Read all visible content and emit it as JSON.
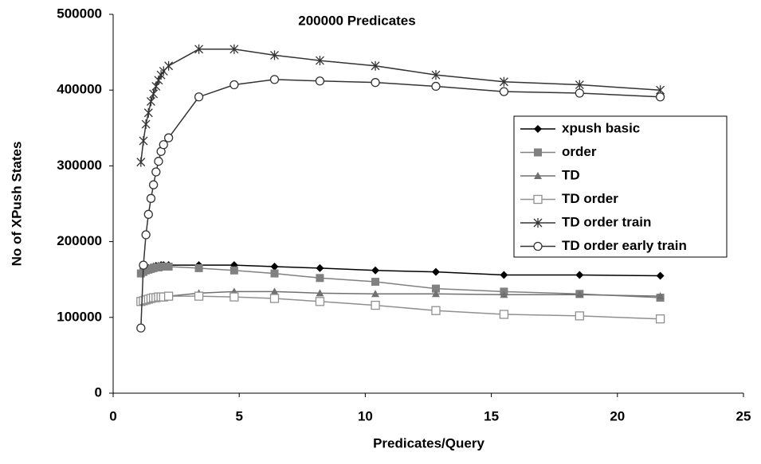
{
  "chart_data": {
    "type": "line",
    "title": "200000 Predicates",
    "x_label": "Predicates/Query",
    "y_label": "No of XPush States",
    "x": [
      1.1,
      1.2,
      1.3,
      1.4,
      1.5,
      1.6,
      1.7,
      1.8,
      1.9,
      2.0,
      2.2,
      3.4,
      4.8,
      6.4,
      8.2,
      10.4,
      12.8,
      15.5,
      18.5,
      21.7
    ],
    "xlim": [
      0,
      25
    ],
    "xticks": [
      0,
      5,
      10,
      15,
      20,
      25
    ],
    "ylim": [
      0,
      500000
    ],
    "yticks": [
      0,
      100000,
      200000,
      300000,
      400000,
      500000
    ],
    "grid": false,
    "legend": "right",
    "series": [
      {
        "name": "xpush basic",
        "color": "#000000",
        "marker": "diamond",
        "values": [
          158000,
          162000,
          164000,
          165000,
          166000,
          167000,
          168000,
          168000,
          169000,
          169000,
          169000,
          169000,
          169000,
          167000,
          165000,
          162000,
          160000,
          156000,
          156000,
          155000
        ]
      },
      {
        "name": "order",
        "color": "#808080",
        "marker": "square",
        "values": [
          158000,
          160000,
          162000,
          163000,
          164000,
          165000,
          166000,
          166000,
          167000,
          167000,
          167000,
          165000,
          162000,
          158000,
          152000,
          147000,
          138000,
          134000,
          131000,
          126000
        ]
      },
      {
        "name": "TD",
        "color": "#707070",
        "marker": "triangle",
        "values": [
          121000,
          123000,
          124000,
          125000,
          126000,
          127000,
          127000,
          128000,
          128000,
          128000,
          128000,
          132000,
          134000,
          134000,
          132000,
          131000,
          131000,
          130000,
          130000,
          128000
        ]
      },
      {
        "name": "TD order",
        "color": "#909090",
        "marker": "open-square",
        "values": [
          121000,
          122000,
          123000,
          124000,
          125000,
          126000,
          126000,
          127000,
          127000,
          127000,
          128000,
          128000,
          127000,
          125000,
          121000,
          116000,
          109000,
          104000,
          102000,
          98000
        ]
      },
      {
        "name": "TD order train",
        "color": "#333333",
        "marker": "star",
        "values": [
          305000,
          333000,
          355000,
          370000,
          385000,
          395000,
          405000,
          413000,
          420000,
          425000,
          432000,
          454000,
          454000,
          446000,
          439000,
          432000,
          420000,
          411000,
          407000,
          400000
        ]
      },
      {
        "name": "TD order early train",
        "color": "#333333",
        "marker": "open-circle",
        "values": [
          86000,
          169000,
          209000,
          236000,
          257000,
          275000,
          292000,
          306000,
          319000,
          328000,
          337000,
          391000,
          407000,
          414000,
          412000,
          410000,
          405000,
          398000,
          396000,
          391000
        ]
      }
    ]
  }
}
